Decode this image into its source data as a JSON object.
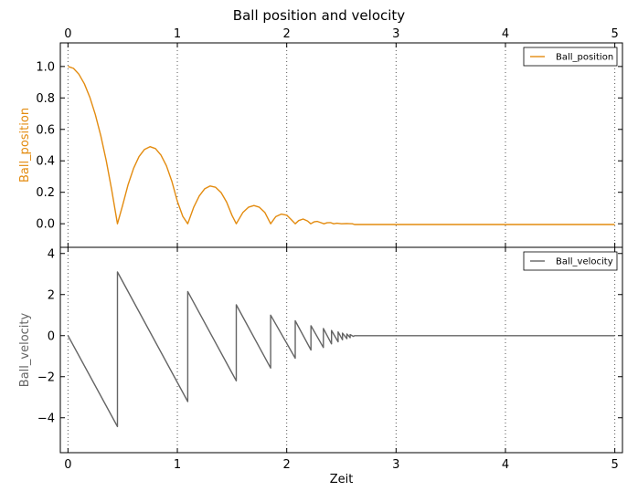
{
  "chart_data": [
    {
      "type": "line",
      "title": "Ball position and velocity",
      "xlabel": "",
      "ylabel": "Ball_position",
      "xlim": [
        -0.07,
        5.07
      ],
      "ylim": [
        -0.15,
        1.15
      ],
      "xticks": [
        0,
        1,
        2,
        3,
        4,
        5
      ],
      "xtick_labels": [
        "0",
        "1",
        "2",
        "3",
        "4",
        "5"
      ],
      "yticks": [
        0.0,
        0.2,
        0.4,
        0.6,
        0.8,
        1.0
      ],
      "ytick_labels": [
        "0.0",
        "0.2",
        "0.4",
        "0.6",
        "0.8",
        "1.0"
      ],
      "x_grid": true,
      "legend_position": "top-right",
      "series": [
        {
          "name": "Ball_position",
          "color": "#e38b0f",
          "x": [
            0,
            0.05,
            0.1,
            0.15,
            0.2,
            0.25,
            0.3,
            0.35,
            0.4,
            0.452,
            0.5,
            0.55,
            0.6,
            0.65,
            0.7,
            0.75,
            0.8,
            0.85,
            0.9,
            0.95,
            1.0,
            1.05,
            1.095,
            1.15,
            1.2,
            1.25,
            1.3,
            1.35,
            1.4,
            1.45,
            1.5,
            1.539,
            1.6,
            1.65,
            1.7,
            1.75,
            1.8,
            1.853,
            1.9,
            1.95,
            2.0,
            2.04,
            2.078,
            2.11,
            2.15,
            2.19,
            2.22,
            2.25,
            2.28,
            2.31,
            2.34,
            2.37,
            2.4,
            2.43,
            2.46,
            2.5,
            2.55,
            2.6,
            2.62,
            3.0,
            4.0,
            5.0
          ],
          "y": [
            1.0,
            0.988,
            0.951,
            0.89,
            0.804,
            0.694,
            0.559,
            0.399,
            0.215,
            0.0,
            0.118,
            0.25,
            0.353,
            0.427,
            0.473,
            0.49,
            0.478,
            0.437,
            0.368,
            0.27,
            0.143,
            0.047,
            0.0,
            0.106,
            0.177,
            0.222,
            0.24,
            0.232,
            0.198,
            0.138,
            0.052,
            0.0,
            0.072,
            0.105,
            0.116,
            0.105,
            0.072,
            0.0,
            0.045,
            0.061,
            0.054,
            0.027,
            0.0,
            0.02,
            0.03,
            0.018,
            0.0,
            0.012,
            0.015,
            0.007,
            0.0,
            0.006,
            0.007,
            0.0,
            0.003,
            0.0,
            0.001,
            0.0,
            -0.005,
            -0.005,
            -0.005,
            -0.005
          ]
        }
      ]
    },
    {
      "type": "line",
      "xlabel": "Zeit",
      "ylabel": "Ball_velocity",
      "xlim": [
        -0.07,
        5.07
      ],
      "ylim": [
        -5.7,
        4.3
      ],
      "xticks": [
        0,
        1,
        2,
        3,
        4,
        5
      ],
      "xtick_labels": [
        "0",
        "1",
        "2",
        "3",
        "4",
        "5"
      ],
      "yticks": [
        -4,
        -2,
        0,
        2,
        4
      ],
      "ytick_labels": [
        "−4",
        "−2",
        "0",
        "2",
        "4"
      ],
      "x_grid": true,
      "legend_position": "top-right",
      "series": [
        {
          "name": "Ball_velocity",
          "color": "#646464",
          "x": [
            0,
            0.452,
            0.452,
            1.095,
            1.095,
            1.539,
            1.539,
            1.853,
            1.853,
            2.078,
            2.078,
            2.222,
            2.222,
            2.335,
            2.335,
            2.41,
            2.41,
            2.47,
            2.47,
            2.51,
            2.51,
            2.55,
            2.55,
            2.58,
            2.58,
            2.61,
            2.62,
            3.0,
            4.0,
            5.0
          ],
          "y": [
            0.0,
            -4.43,
            3.1,
            -3.21,
            2.15,
            -2.2,
            1.5,
            -1.58,
            1.0,
            -1.1,
            0.72,
            -0.7,
            0.48,
            -0.58,
            0.35,
            -0.4,
            0.25,
            -0.3,
            0.18,
            -0.2,
            0.12,
            -0.15,
            0.08,
            -0.1,
            0.05,
            -0.04,
            0.0,
            0.0,
            0.0,
            0.0
          ]
        }
      ]
    }
  ]
}
